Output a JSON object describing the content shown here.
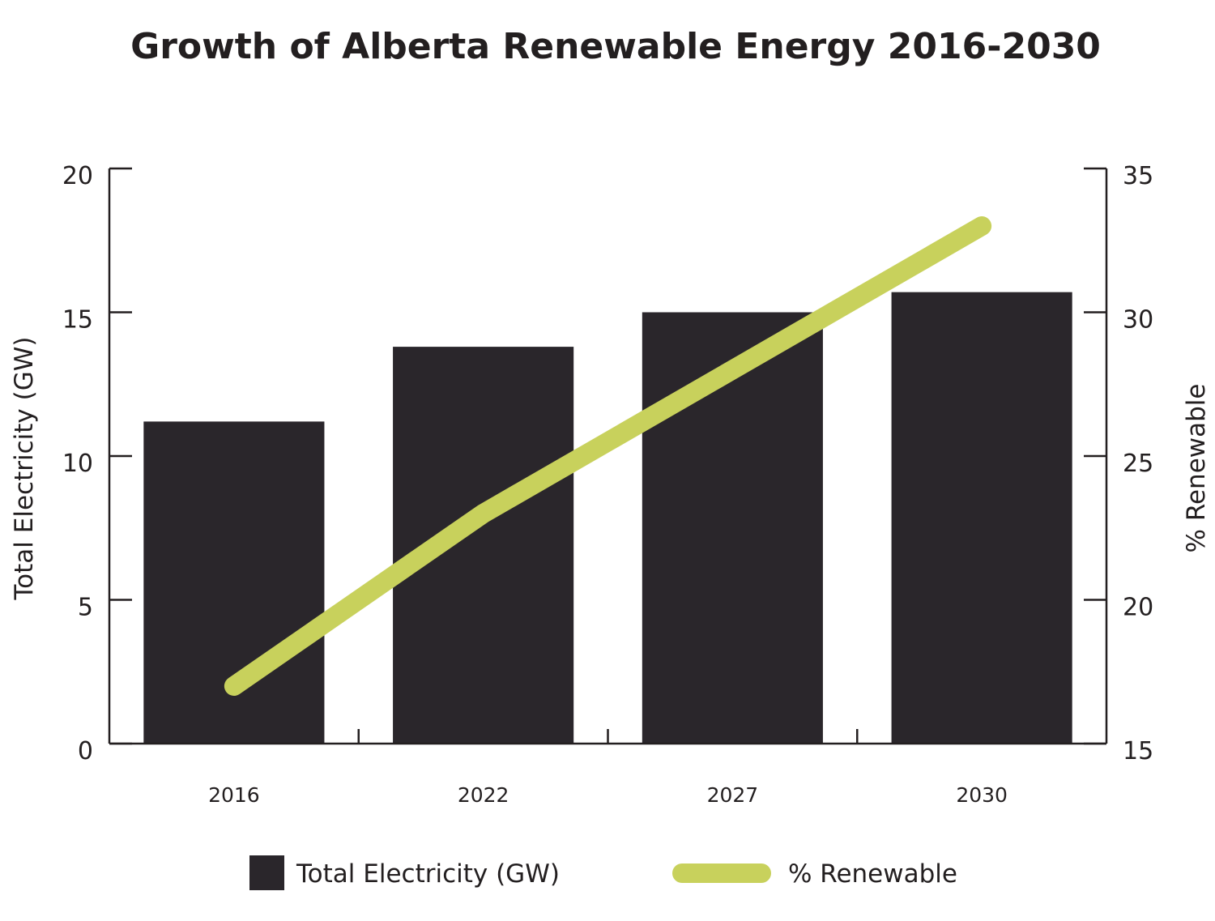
{
  "chart_data": {
    "type": "bar",
    "title": "Growth of Alberta Renewable Energy 2016-2030",
    "categories": [
      "2016",
      "2022",
      "2027",
      "2030"
    ],
    "series": [
      {
        "name": "Total Electricity (GW)",
        "type": "bar",
        "axis": "left",
        "values": [
          11.2,
          13.8,
          15.0,
          15.7
        ],
        "color": "#2a262b"
      },
      {
        "name": "% Renewable",
        "type": "line",
        "axis": "right",
        "values": [
          17,
          23,
          28,
          33
        ],
        "color": "#c8d15c"
      }
    ],
    "y_left": {
      "label": "Total Electricity (GW)",
      "lim": [
        0,
        20
      ],
      "ticks": [
        "0",
        "5",
        "10",
        "15",
        "20"
      ]
    },
    "y_right": {
      "label": "% Renewable",
      "lim": [
        15,
        35
      ],
      "ticks": [
        "15",
        "20",
        "25",
        "30",
        "35"
      ]
    },
    "grid": false,
    "legend": {
      "position": "bottom",
      "items": [
        "Total Electricity (GW)",
        "% Renewable"
      ]
    }
  }
}
